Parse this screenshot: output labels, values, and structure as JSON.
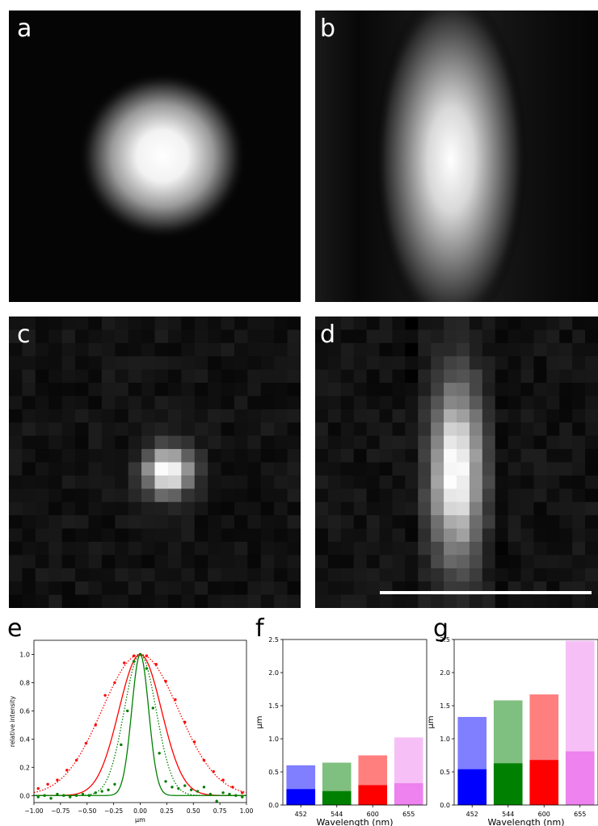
{
  "panels": {
    "a": {
      "label": "a"
    },
    "b": {
      "label": "b"
    },
    "c": {
      "label": "c"
    },
    "d": {
      "label": "d"
    },
    "e": {
      "label": "e"
    },
    "f": {
      "label": "f"
    },
    "g": {
      "label": "g"
    }
  },
  "colors": {
    "red": "#ff0000",
    "green": "#008000",
    "blue": "#0000ff",
    "violet": "#ee82ee"
  },
  "chart_data": [
    {
      "id": "e",
      "type": "line",
      "xlabel": "μm",
      "ylabel": "relative intensity",
      "xlim": [
        -1.0,
        1.0
      ],
      "ylim": [
        -0.05,
        1.1
      ],
      "xticks": [
        "−1.00",
        "−0.75",
        "−0.50",
        "−0.25",
        "0.00",
        "0.25",
        "0.50",
        "0.75",
        "1.00"
      ],
      "yticks": [
        "0.0",
        "0.2",
        "0.4",
        "0.6",
        "0.8",
        "1.0"
      ],
      "series": [
        {
          "color": "#ff0000",
          "style": "dotted",
          "sigma": 0.36
        },
        {
          "color": "#ff0000",
          "style": "solid",
          "sigma": 0.2
        },
        {
          "color": "#008000",
          "style": "dotted",
          "sigma": 0.15
        },
        {
          "color": "#008000",
          "style": "solid",
          "sigma": 0.08
        }
      ],
      "points": [
        {
          "color": "#ff0000",
          "x": [
            -0.96,
            -0.87,
            -0.78,
            -0.69,
            -0.6,
            -0.51,
            -0.42,
            -0.33,
            -0.24,
            -0.15,
            -0.06,
            0.0,
            0.06,
            0.15,
            0.24,
            0.33,
            0.42,
            0.51,
            0.6,
            0.69,
            0.78,
            0.87,
            0.96
          ],
          "y": [
            0.05,
            0.08,
            0.11,
            0.18,
            0.25,
            0.37,
            0.5,
            0.71,
            0.8,
            0.94,
            0.99,
            1.0,
            0.99,
            0.93,
            0.81,
            0.68,
            0.52,
            0.38,
            0.25,
            0.17,
            0.11,
            0.06,
            0.02
          ]
        },
        {
          "color": "#008000",
          "x": [
            -0.96,
            -0.9,
            -0.84,
            -0.78,
            -0.72,
            -0.66,
            -0.6,
            -0.54,
            -0.48,
            -0.42,
            -0.36,
            -0.3,
            -0.24,
            -0.18,
            -0.12,
            -0.06,
            0.0,
            0.06,
            0.12,
            0.18,
            0.24,
            0.3,
            0.36,
            0.42,
            0.48,
            0.54,
            0.6,
            0.66,
            0.72,
            0.78,
            0.84,
            0.9,
            0.96
          ],
          "y": [
            -0.01,
            0.0,
            -0.02,
            0.01,
            0.0,
            -0.01,
            0.0,
            0.01,
            0.0,
            0.02,
            0.03,
            0.04,
            0.08,
            0.36,
            0.6,
            0.95,
            1.0,
            0.9,
            0.62,
            0.3,
            0.1,
            0.06,
            0.05,
            0.07,
            0.04,
            0.03,
            0.06,
            0.01,
            -0.04,
            0.02,
            0.01,
            0.0,
            -0.01
          ]
        }
      ]
    },
    {
      "id": "f",
      "type": "bar",
      "xlabel": "Wavelength (nm)",
      "ylabel": "μm",
      "ylim": [
        0,
        2.5
      ],
      "yticks": [
        "0.0",
        "0.5",
        "1.0",
        "1.5",
        "2.0",
        "2.5"
      ],
      "categories": [
        "452",
        "544",
        "600",
        "655"
      ],
      "bar_colors": [
        "#0000ff",
        "#008000",
        "#ff0000",
        "#ee82ee"
      ],
      "series": [
        {
          "values": [
            0.6,
            0.64,
            0.75,
            1.02
          ],
          "opacity": 0.5
        },
        {
          "values": [
            0.24,
            0.21,
            0.3,
            0.33
          ],
          "opacity": 1.0
        }
      ]
    },
    {
      "id": "g",
      "type": "bar",
      "xlabel": "Wavelength (nm)",
      "ylabel": "μm",
      "ylim": [
        0,
        2.5
      ],
      "yticks": [
        "0.0",
        "0.5",
        "1.0",
        "1.5",
        "2.0",
        "2.5"
      ],
      "categories": [
        "452",
        "544",
        "600",
        "655"
      ],
      "bar_colors": [
        "#0000ff",
        "#008000",
        "#ff0000",
        "#ee82ee"
      ],
      "series": [
        {
          "values": [
            1.33,
            1.58,
            1.67,
            2.48
          ],
          "opacity": 0.5
        },
        {
          "values": [
            0.54,
            0.63,
            0.68,
            0.81
          ],
          "opacity": 1.0
        }
      ]
    }
  ]
}
